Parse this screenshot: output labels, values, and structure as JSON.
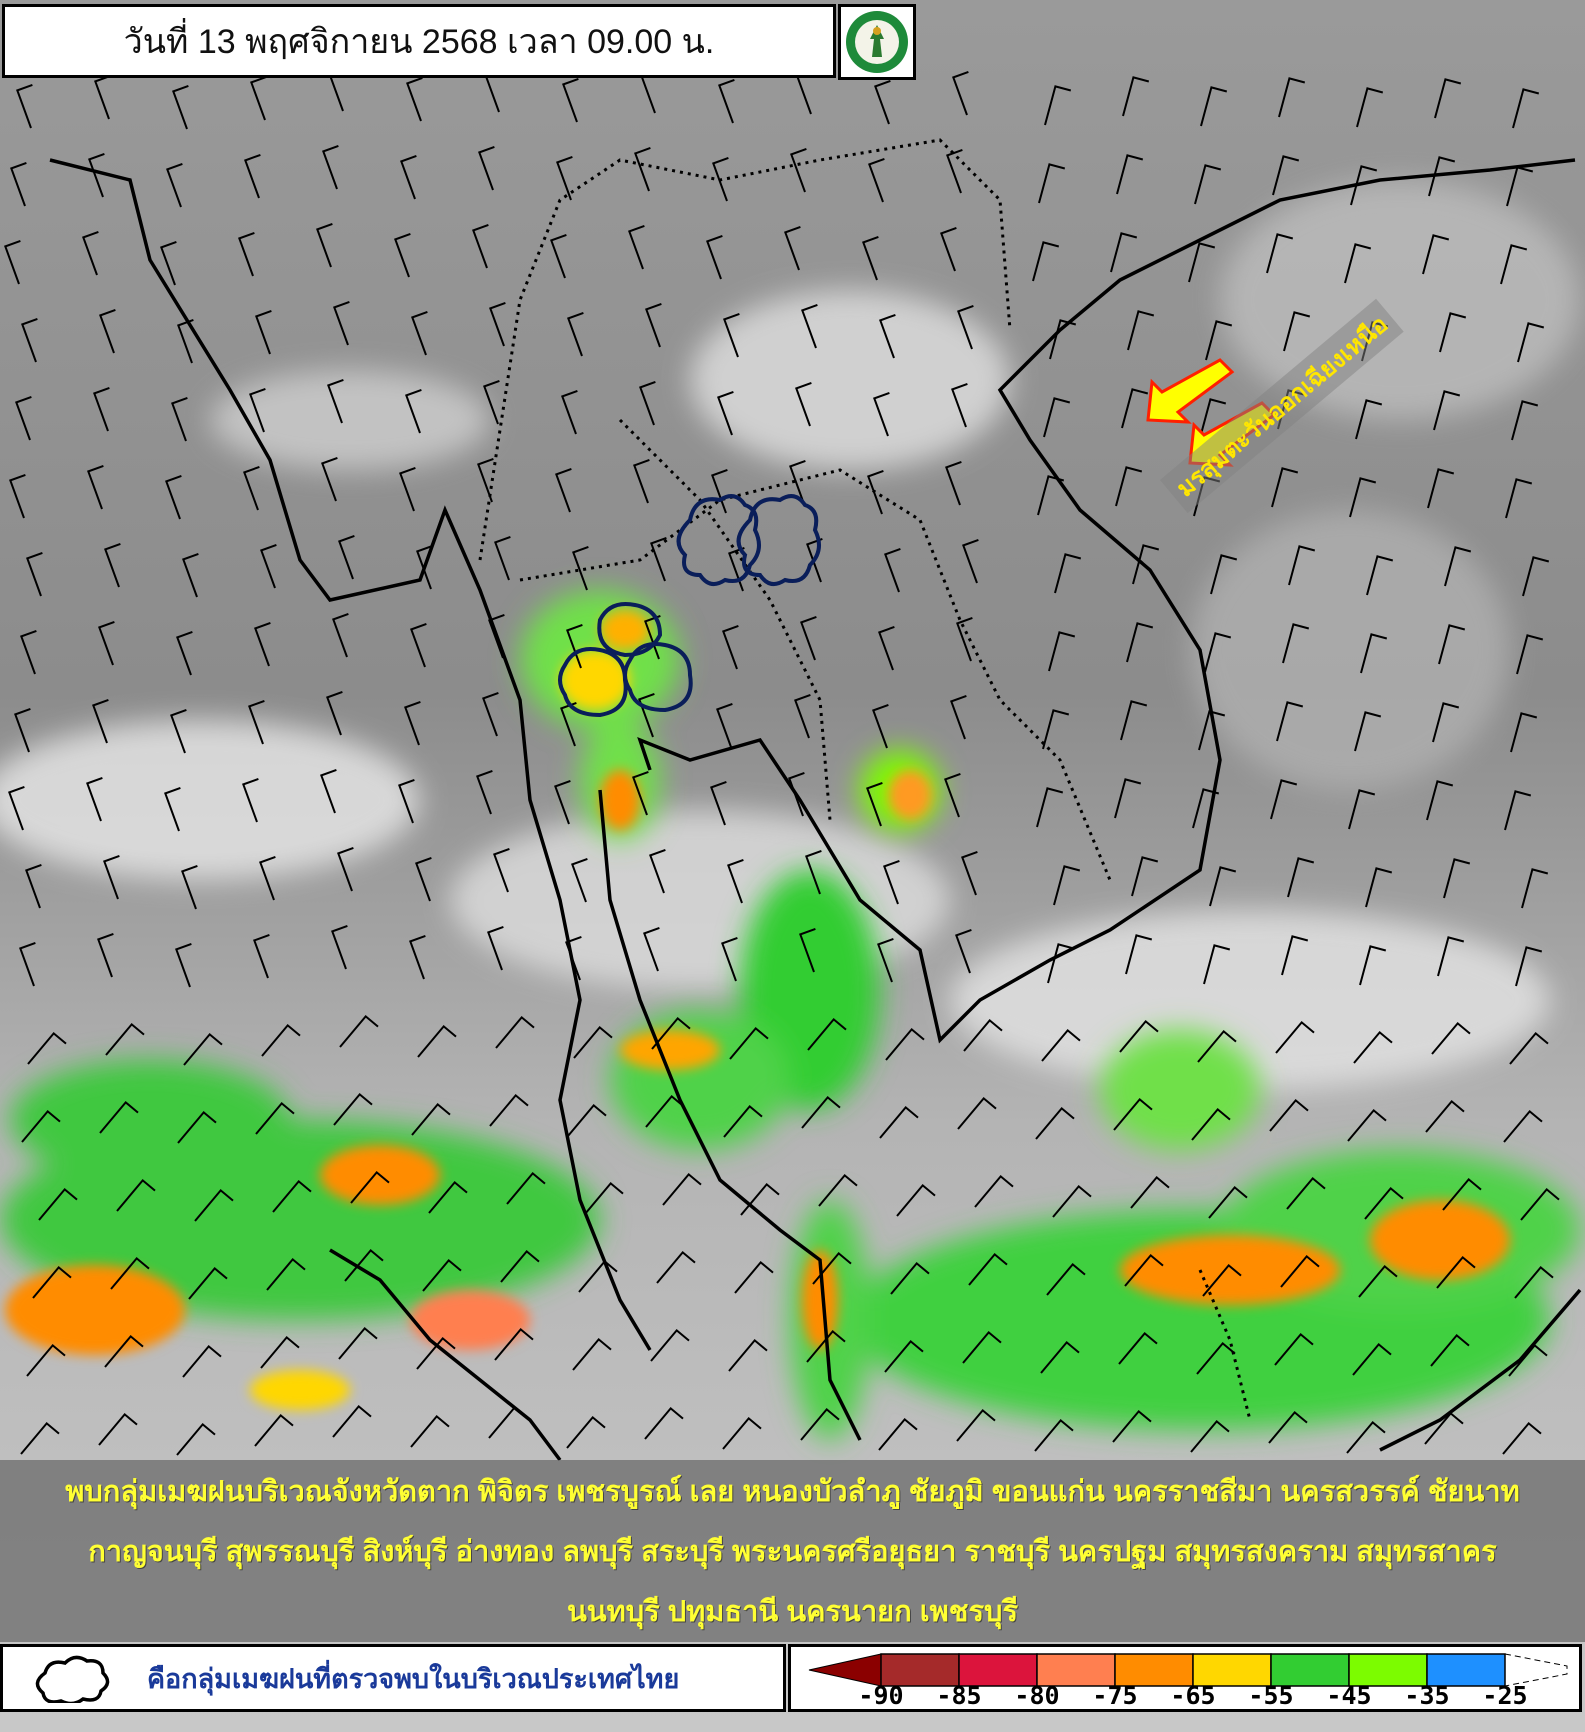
{
  "header": {
    "title": "วันที่ 13 พฤศจิกายน 2568 เวลา 09.00 น.",
    "logo": "Thai Meteorological Department seal"
  },
  "annotation": {
    "monsoon_label": "มรสุมตะวันออกเฉียงเหนือ",
    "arrow_color": "#ffff00",
    "arrow_outline": "#ff2000",
    "arrow_direction": "southwest"
  },
  "info": {
    "lines": [
      "พบกลุ่มเมฆฝนบริเวณจังหวัดตาก พิจิตร เพชรบูรณ์ เลย หนองบัวลำภู ชัยภูมิ ขอนแก่น นครราชสีมา นครสวรรค์ ชัยนาท",
      "กาญจนบุรี สุพรรณบุรี สิงห์บุรี อ่างทอง ลพบุรี สระบุรี พระนครศรีอยุธยา ราชบุรี นครปฐม สมุทรสงคราม สมุทรสาคร",
      "นนทบุรี ปทุมธานี นครนายก เพชรบุรี"
    ],
    "text_color": "#ffff33"
  },
  "legend": {
    "cloud_icon": "cloud-outline-icon",
    "cloud_text": "คือกลุ่มเมฆฝนที่ตรวจพบในบริเวณประเทศไทย",
    "scale_ticks": [
      "-90",
      "-85",
      "-80",
      "-75",
      "-65",
      "-55",
      "-45",
      "-35",
      "-25"
    ],
    "scale_colors": [
      "#8b0000",
      "#a52a2a",
      "#dc143c",
      "#ff7f50",
      "#ff8c00",
      "#ffd700",
      "#32cd32",
      "#7cfc00",
      "#1e90ff"
    ]
  }
}
